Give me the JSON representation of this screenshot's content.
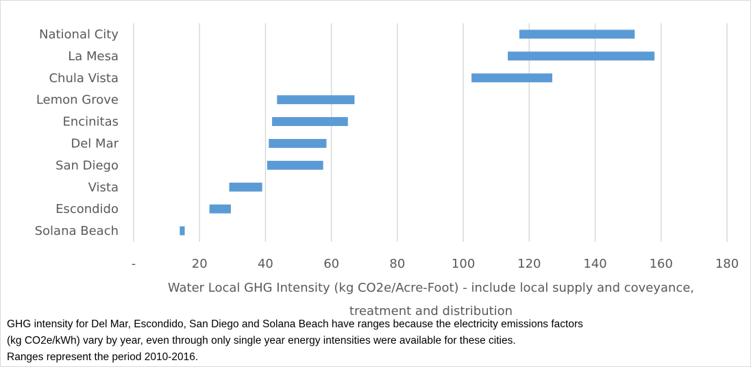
{
  "chart_data": {
    "type": "bar",
    "orientation": "horizontal",
    "style": "floating-range",
    "categories": [
      "National City",
      "La Mesa",
      "Chula Vista",
      "Lemon Grove",
      "Encinitas",
      "Del Mar",
      "San Diego",
      "Vista",
      "Escondido",
      "Solana Beach"
    ],
    "ranges": [
      [
        117,
        152
      ],
      [
        113.5,
        158
      ],
      [
        102.5,
        127
      ],
      [
        43.5,
        67
      ],
      [
        42,
        65
      ],
      [
        41,
        58.5
      ],
      [
        40.5,
        57.5
      ],
      [
        29,
        39
      ],
      [
        23,
        29.5
      ],
      [
        14,
        15.5
      ]
    ],
    "xlabel_lines": [
      "Water Local GHG Intensity (kg CO2e/Acre-Foot) - include local supply and coveyance,",
      "treatment and distribution"
    ],
    "x_ticks": [
      0,
      20,
      40,
      60,
      80,
      100,
      120,
      140,
      160,
      180
    ],
    "x_tick_labels": [
      "-",
      "20",
      "40",
      "60",
      "80",
      "100",
      "120",
      "140",
      "160",
      "180"
    ],
    "xlim": [
      0,
      180
    ],
    "grid": true,
    "bar_color": "#5B9BD5",
    "grid_color": "#d9d9d9"
  },
  "footnote": {
    "line1": "GHG intensity for Del Mar, Escondido, San Diego and Solana Beach have ranges because the electricity emissions factors",
    "line2": "(kg CO2e/kWh) vary by year, even through only single year energy intensities were available for these cities.",
    "line3": "Ranges represent the period 2010-2016."
  }
}
